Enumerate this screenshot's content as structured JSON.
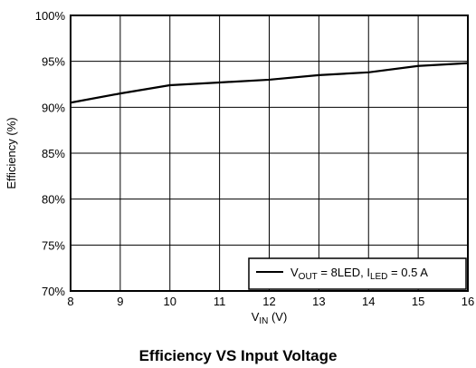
{
  "chart_data": {
    "type": "line",
    "title": "",
    "caption": "Efficiency VS Input Voltage",
    "xlabel": {
      "main": "V",
      "sub": "IN",
      "unit": " (V)"
    },
    "ylabel": "Efficiency (%)",
    "xlim": [
      8,
      16
    ],
    "ylim": [
      70,
      100
    ],
    "xticks": [
      8,
      9,
      10,
      11,
      12,
      13,
      14,
      15,
      16
    ],
    "yticks": [
      70,
      75,
      80,
      85,
      90,
      95,
      100
    ],
    "ytick_suffix": "%",
    "grid": true,
    "legend_position": "bottom-right",
    "series": [
      {
        "legend_parts": [
          {
            "text": "V",
            "sub": false
          },
          {
            "text": "OUT",
            "sub": true
          },
          {
            "text": " = 8LED, I",
            "sub": false
          },
          {
            "text": "LED",
            "sub": true
          },
          {
            "text": " = 0.5 A",
            "sub": false
          }
        ],
        "x": [
          8,
          9,
          10,
          11,
          12,
          13,
          14,
          15,
          16
        ],
        "y": [
          90.5,
          91.5,
          92.4,
          92.7,
          93.0,
          93.5,
          93.8,
          94.5,
          94.8
        ],
        "color": "#000000"
      }
    ]
  }
}
